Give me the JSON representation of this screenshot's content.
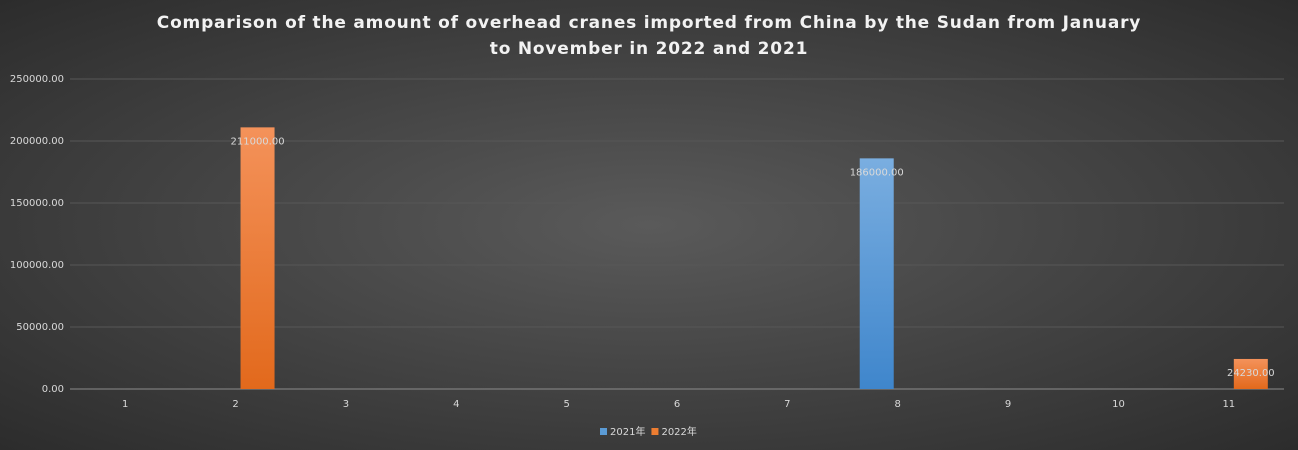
{
  "chart_data": {
    "type": "bar",
    "title": "Comparison of the amount of overhead cranes imported from China by the Sudan from January to November in 2022 and 2021",
    "categories": [
      "1",
      "2",
      "3",
      "4",
      "5",
      "6",
      "7",
      "8",
      "9",
      "10",
      "11"
    ],
    "series": [
      {
        "name": "2021年",
        "color": "#5b9bd5",
        "values": [
          null,
          null,
          null,
          null,
          null,
          null,
          null,
          186000,
          null,
          null,
          null
        ],
        "value_labels": [
          null,
          null,
          null,
          null,
          null,
          null,
          null,
          "186000.00",
          null,
          null,
          null
        ]
      },
      {
        "name": "2022年",
        "color": "#ed7d31",
        "values": [
          null,
          211000,
          null,
          null,
          null,
          null,
          null,
          null,
          null,
          null,
          24230
        ],
        "value_labels": [
          null,
          "211000.00",
          null,
          null,
          null,
          null,
          null,
          null,
          null,
          null,
          "24230.00"
        ]
      }
    ],
    "ylim": [
      0,
      250000
    ],
    "yticks": [
      {
        "value": 0,
        "label": "0.00"
      },
      {
        "value": 50000,
        "label": "50000.00"
      },
      {
        "value": 100000,
        "label": "100000.00"
      },
      {
        "value": 150000,
        "label": "150000.00"
      },
      {
        "value": 200000,
        "label": "200000.00"
      },
      {
        "value": 250000,
        "label": "250000.00"
      }
    ],
    "grid": true,
    "legend": "bottom"
  }
}
